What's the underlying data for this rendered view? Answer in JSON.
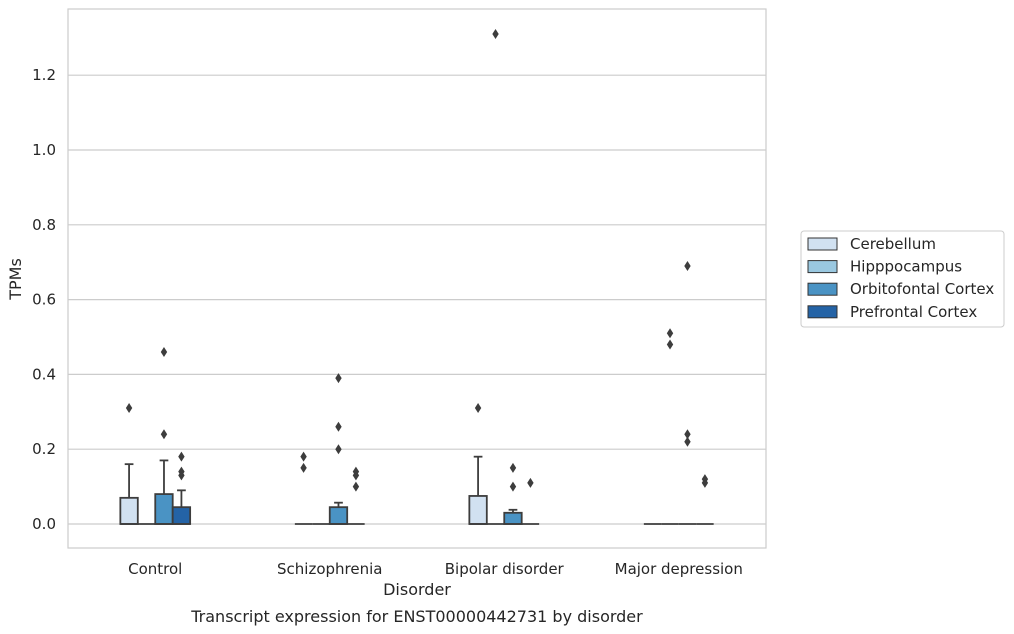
{
  "chart_data": {
    "type": "box",
    "title": "",
    "caption": "Transcript expression for ENST00000442731 by disorder",
    "xlabel": "Disorder",
    "ylabel": "TPMs",
    "ylim": [
      -0.065,
      1.38
    ],
    "yticks": [
      "0.0",
      "0.2",
      "0.4",
      "0.6",
      "0.8",
      "1.0",
      "1.2"
    ],
    "categories": [
      "Control",
      "Schizophrenia",
      "Bipolar disorder",
      "Major depression"
    ],
    "grid": "horizontal",
    "legend_position": "right",
    "colors": {
      "Cerebellum": "#d1e1f1",
      "Hipppocampus": "#9ac8e0",
      "Orbitofontal Cortex": "#4a93c4",
      "Prefrontal Cortex": "#2463a6"
    },
    "series": [
      {
        "name": "Cerebellum",
        "boxes": [
          {
            "category": "Control",
            "q1": 0.0,
            "median": 0.0,
            "q3": 0.07,
            "whisker_low": 0.0,
            "whisker_high": 0.16,
            "outliers": [
              0.31
            ]
          },
          {
            "category": "Schizophrenia",
            "q1": 0.0,
            "median": 0.0,
            "q3": 0.0,
            "whisker_low": 0.0,
            "whisker_high": 0.0,
            "outliers": [
              0.15,
              0.18
            ]
          },
          {
            "category": "Bipolar disorder",
            "q1": 0.0,
            "median": 0.0,
            "q3": 0.075,
            "whisker_low": 0.0,
            "whisker_high": 0.18,
            "outliers": [
              0.31
            ]
          },
          {
            "category": "Major depression",
            "q1": 0.0,
            "median": 0.0,
            "q3": 0.0,
            "whisker_low": 0.0,
            "whisker_high": 0.0,
            "outliers": []
          }
        ]
      },
      {
        "name": "Hipppocampus",
        "boxes": [
          {
            "category": "Control",
            "q1": 0.0,
            "median": 0.0,
            "q3": 0.0,
            "whisker_low": 0.0,
            "whisker_high": 0.0,
            "outliers": []
          },
          {
            "category": "Schizophrenia",
            "q1": 0.0,
            "median": 0.0,
            "q3": 0.0,
            "whisker_low": 0.0,
            "whisker_high": 0.0,
            "outliers": []
          },
          {
            "category": "Bipolar disorder",
            "q1": 0.0,
            "median": 0.0,
            "q3": 0.0,
            "whisker_low": 0.0,
            "whisker_high": 0.0,
            "outliers": [
              1.31
            ]
          },
          {
            "category": "Major depression",
            "q1": 0.0,
            "median": 0.0,
            "q3": 0.0,
            "whisker_low": 0.0,
            "whisker_high": 0.0,
            "outliers": [
              0.48,
              0.51
            ]
          }
        ]
      },
      {
        "name": "Orbitofontal Cortex",
        "boxes": [
          {
            "category": "Control",
            "q1": 0.0,
            "median": 0.0,
            "q3": 0.08,
            "whisker_low": 0.0,
            "whisker_high": 0.17,
            "outliers": [
              0.24,
              0.46
            ]
          },
          {
            "category": "Schizophrenia",
            "q1": 0.0,
            "median": 0.0,
            "q3": 0.045,
            "whisker_low": 0.0,
            "whisker_high": 0.057,
            "outliers": [
              0.2,
              0.26,
              0.39
            ]
          },
          {
            "category": "Bipolar disorder",
            "q1": 0.0,
            "median": 0.0,
            "q3": 0.03,
            "whisker_low": 0.0,
            "whisker_high": 0.038,
            "outliers": [
              0.1,
              0.15
            ]
          },
          {
            "category": "Major depression",
            "q1": 0.0,
            "median": 0.0,
            "q3": 0.0,
            "whisker_low": 0.0,
            "whisker_high": 0.0,
            "outliers": [
              0.22,
              0.24,
              0.69
            ]
          }
        ]
      },
      {
        "name": "Prefrontal Cortex",
        "boxes": [
          {
            "category": "Control",
            "q1": 0.0,
            "median": 0.0,
            "q3": 0.045,
            "whisker_low": 0.0,
            "whisker_high": 0.09,
            "outliers": [
              0.13,
              0.14,
              0.18
            ]
          },
          {
            "category": "Schizophrenia",
            "q1": 0.0,
            "median": 0.0,
            "q3": 0.0,
            "whisker_low": 0.0,
            "whisker_high": 0.0,
            "outliers": [
              0.1,
              0.13,
              0.14
            ]
          },
          {
            "category": "Bipolar disorder",
            "q1": 0.0,
            "median": 0.0,
            "q3": 0.0,
            "whisker_low": 0.0,
            "whisker_high": 0.0,
            "outliers": [
              0.11
            ]
          },
          {
            "category": "Major depression",
            "q1": 0.0,
            "median": 0.0,
            "q3": 0.0,
            "whisker_low": 0.0,
            "whisker_high": 0.0,
            "outliers": [
              0.11,
              0.12
            ]
          }
        ]
      }
    ]
  }
}
